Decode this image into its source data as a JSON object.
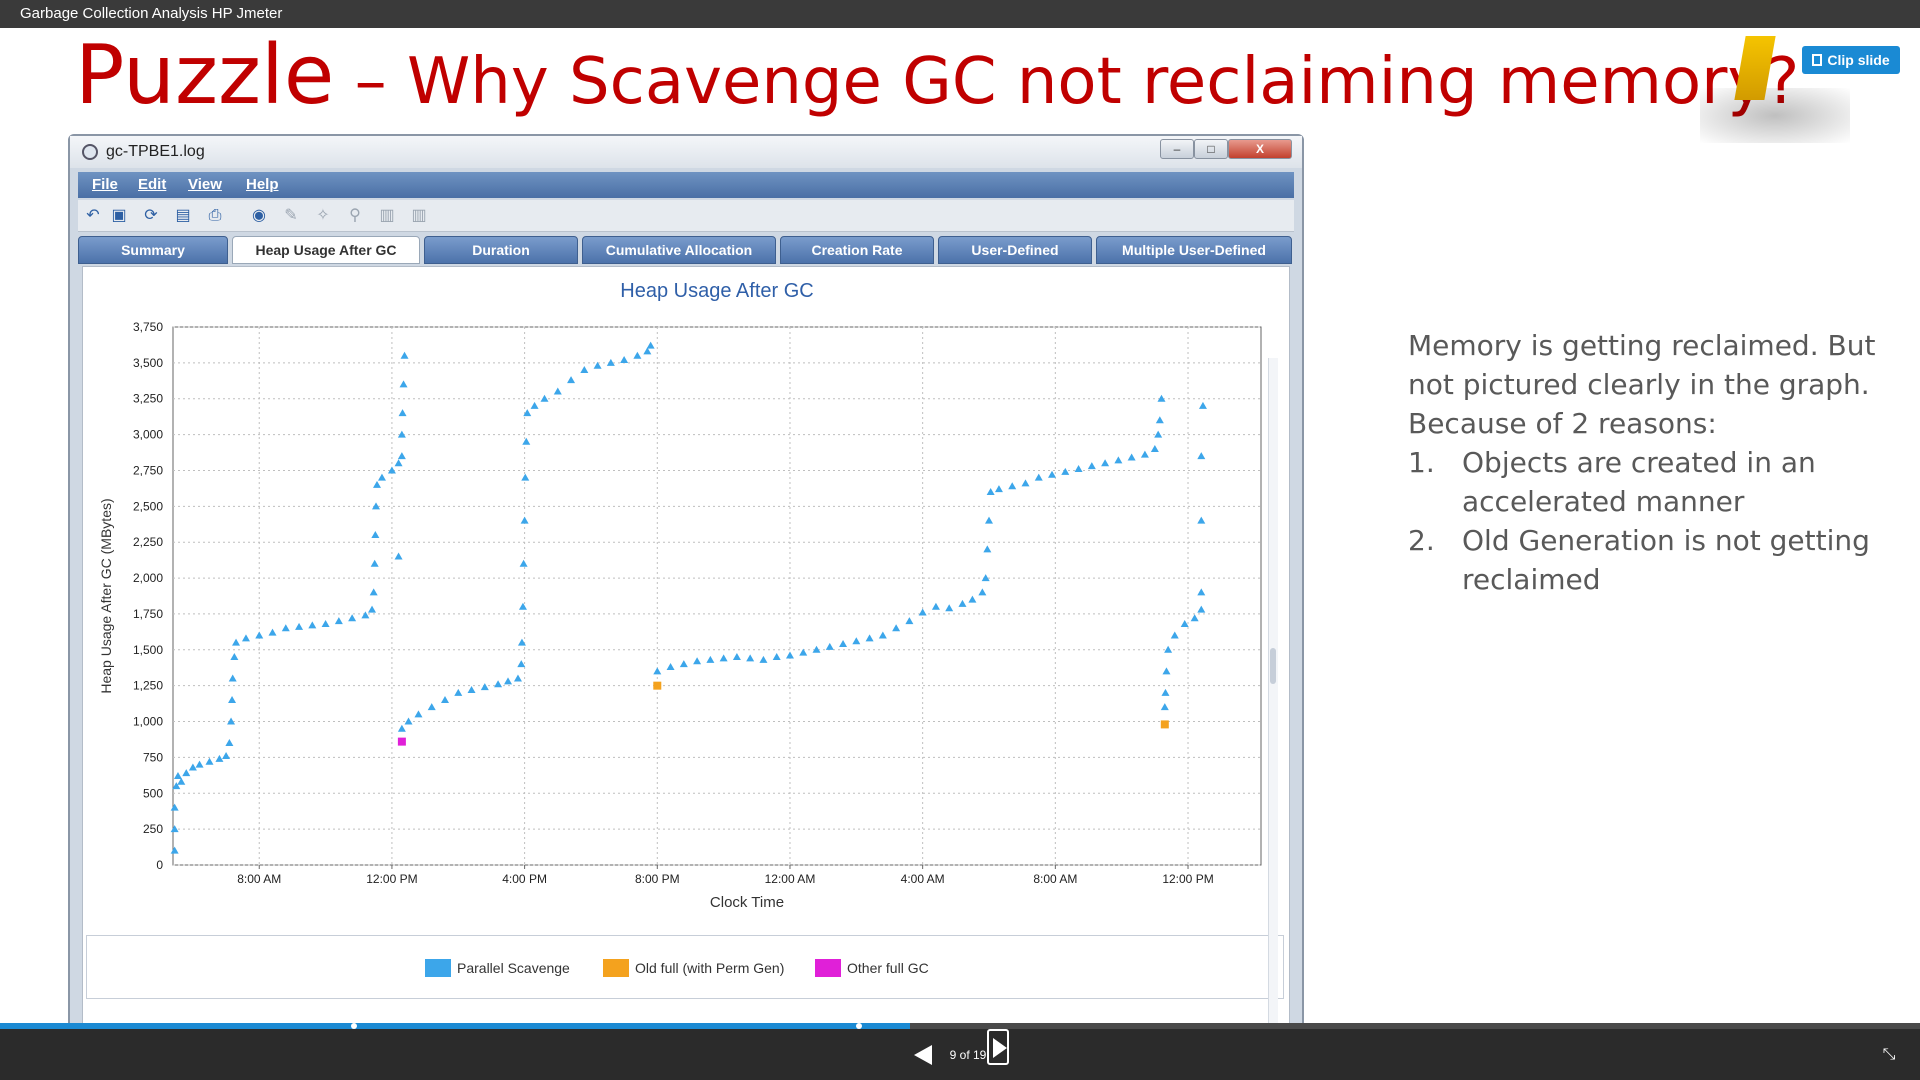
{
  "viewer": {
    "title": "Garbage Collection Analysis HP Jmeter",
    "clip_label": "Clip slide",
    "counter": "9 of 19",
    "progress_fraction": 0.474
  },
  "slide": {
    "title_main": "Puzzle",
    "title_rest": " – Why Scavenge GC not reclaiming memory?",
    "notes": {
      "intro": [
        "Memory is getting reclaimed. But",
        "not pictured clearly in the graph.",
        "Because of 2 reasons:"
      ],
      "items": [
        {
          "num": "1.",
          "lines": [
            "Objects are created in an",
            "accelerated manner"
          ]
        },
        {
          "num": "2.",
          "lines": [
            "Old Generation is not getting",
            "reclaimed"
          ]
        }
      ]
    }
  },
  "window": {
    "title": "gc-TPBE1.log",
    "close_glyph": "X",
    "menu": [
      "File",
      "Edit",
      "View",
      "Help"
    ],
    "toolbar_icons": [
      "undo-icon",
      "import-icon",
      "refresh-icon",
      "save-icon",
      "print-icon",
      "globe-icon",
      "wand-icon",
      "wand-sparkle-icon",
      "magnifier-icon",
      "bar-chart-icon",
      "bar-chart-2-icon"
    ],
    "tabs": [
      {
        "label": "Summary",
        "active": false
      },
      {
        "label": "Heap Usage After GC",
        "active": true
      },
      {
        "label": "Duration",
        "active": false
      },
      {
        "label": "Cumulative Allocation",
        "active": false
      },
      {
        "label": "Creation Rate",
        "active": false
      },
      {
        "label": "User-Defined",
        "active": false
      },
      {
        "label": "Multiple User-Defined",
        "active": false
      }
    ]
  },
  "chart_data": {
    "type": "scatter",
    "title": "Heap Usage After GC",
    "xlabel": "Clock Time",
    "ylabel": "Heap Usage After GC (MBytes)",
    "ylim": [
      0,
      3750
    ],
    "yticks": [
      0,
      250,
      500,
      750,
      1000,
      1250,
      1500,
      1750,
      2000,
      2250,
      2500,
      2750,
      3000,
      3250,
      3500,
      3750
    ],
    "ytick_labels": [
      "0",
      "250",
      "500",
      "750",
      "1,000",
      "1,250",
      "1,500",
      "1,750",
      "2,000",
      "2,250",
      "2,500",
      "2,750",
      "3,000",
      "3,250",
      "3,500",
      "3,750"
    ],
    "xlim_hours": [
      5.4,
      38.2
    ],
    "xticks_hours": [
      8,
      12,
      16,
      20,
      24,
      28,
      32,
      36
    ],
    "xtick_labels": [
      "8:00 AM",
      "12:00 PM",
      "4:00 PM",
      "8:00 PM",
      "12:00 AM",
      "4:00 AM",
      "8:00 AM",
      "12:00 PM"
    ],
    "grid": true,
    "legend": "bottom",
    "series": [
      {
        "name": "Parallel Scavenge",
        "color": "#3ca6ea",
        "marker": "triangle",
        "points": [
          [
            5.45,
            100
          ],
          [
            5.45,
            250
          ],
          [
            5.45,
            400
          ],
          [
            5.5,
            550
          ],
          [
            5.55,
            620
          ],
          [
            5.65,
            580
          ],
          [
            5.8,
            640
          ],
          [
            6.0,
            680
          ],
          [
            6.2,
            700
          ],
          [
            6.5,
            720
          ],
          [
            6.8,
            740
          ],
          [
            7.0,
            760
          ],
          [
            7.1,
            850
          ],
          [
            7.15,
            1000
          ],
          [
            7.18,
            1150
          ],
          [
            7.2,
            1300
          ],
          [
            7.25,
            1450
          ],
          [
            7.3,
            1550
          ],
          [
            7.6,
            1580
          ],
          [
            8.0,
            1600
          ],
          [
            8.4,
            1620
          ],
          [
            8.8,
            1650
          ],
          [
            9.2,
            1660
          ],
          [
            9.6,
            1670
          ],
          [
            10.0,
            1680
          ],
          [
            10.4,
            1700
          ],
          [
            10.8,
            1720
          ],
          [
            11.2,
            1740
          ],
          [
            11.4,
            1780
          ],
          [
            11.45,
            1900
          ],
          [
            11.48,
            2100
          ],
          [
            11.5,
            2300
          ],
          [
            11.52,
            2500
          ],
          [
            11.55,
            2650
          ],
          [
            11.7,
            2700
          ],
          [
            12.0,
            2750
          ],
          [
            12.2,
            2800
          ],
          [
            12.3,
            2850
          ],
          [
            12.2,
            2150
          ],
          [
            12.3,
            3000
          ],
          [
            12.32,
            3150
          ],
          [
            12.35,
            3350
          ],
          [
            12.38,
            3550
          ],
          [
            12.3,
            950
          ],
          [
            12.5,
            1000
          ],
          [
            12.8,
            1050
          ],
          [
            13.2,
            1100
          ],
          [
            13.6,
            1150
          ],
          [
            14.0,
            1200
          ],
          [
            14.4,
            1220
          ],
          [
            14.8,
            1240
          ],
          [
            15.2,
            1260
          ],
          [
            15.5,
            1280
          ],
          [
            15.8,
            1300
          ],
          [
            15.9,
            1400
          ],
          [
            15.92,
            1550
          ],
          [
            15.95,
            1800
          ],
          [
            15.97,
            2100
          ],
          [
            16.0,
            2400
          ],
          [
            16.02,
            2700
          ],
          [
            16.05,
            2950
          ],
          [
            16.08,
            3150
          ],
          [
            16.3,
            3200
          ],
          [
            16.6,
            3250
          ],
          [
            17.0,
            3300
          ],
          [
            17.4,
            3380
          ],
          [
            17.8,
            3450
          ],
          [
            18.2,
            3480
          ],
          [
            18.6,
            3500
          ],
          [
            19.0,
            3520
          ],
          [
            19.4,
            3550
          ],
          [
            19.7,
            3580
          ],
          [
            19.8,
            3620
          ],
          [
            20.0,
            1350
          ],
          [
            20.4,
            1380
          ],
          [
            20.8,
            1400
          ],
          [
            21.2,
            1420
          ],
          [
            21.6,
            1430
          ],
          [
            22.0,
            1440
          ],
          [
            22.4,
            1450
          ],
          [
            22.8,
            1440
          ],
          [
            23.2,
            1430
          ],
          [
            23.6,
            1450
          ],
          [
            24.0,
            1460
          ],
          [
            24.4,
            1480
          ],
          [
            24.8,
            1500
          ],
          [
            25.2,
            1520
          ],
          [
            25.6,
            1540
          ],
          [
            26.0,
            1560
          ],
          [
            26.4,
            1580
          ],
          [
            26.8,
            1600
          ],
          [
            27.2,
            1650
          ],
          [
            27.6,
            1700
          ],
          [
            28.0,
            1760
          ],
          [
            28.4,
            1800
          ],
          [
            28.8,
            1790
          ],
          [
            29.2,
            1820
          ],
          [
            29.5,
            1850
          ],
          [
            29.8,
            1900
          ],
          [
            29.9,
            2000
          ],
          [
            29.95,
            2200
          ],
          [
            30.0,
            2400
          ],
          [
            30.05,
            2600
          ],
          [
            30.3,
            2620
          ],
          [
            30.7,
            2640
          ],
          [
            31.1,
            2660
          ],
          [
            31.5,
            2700
          ],
          [
            31.9,
            2720
          ],
          [
            32.3,
            2740
          ],
          [
            32.7,
            2760
          ],
          [
            33.1,
            2780
          ],
          [
            33.5,
            2800
          ],
          [
            33.9,
            2820
          ],
          [
            34.3,
            2840
          ],
          [
            34.7,
            2860
          ],
          [
            35.0,
            2900
          ],
          [
            35.1,
            3000
          ],
          [
            35.15,
            3100
          ],
          [
            35.2,
            3250
          ],
          [
            35.3,
            1100
          ],
          [
            35.32,
            1200
          ],
          [
            35.35,
            1350
          ],
          [
            35.4,
            1500
          ],
          [
            35.6,
            1600
          ],
          [
            35.9,
            1680
          ],
          [
            36.2,
            1720
          ],
          [
            36.4,
            1780
          ],
          [
            36.4,
            1900
          ],
          [
            36.4,
            2400
          ],
          [
            36.4,
            2850
          ],
          [
            36.45,
            3200
          ]
        ]
      },
      {
        "name": "Old full (with Perm Gen)",
        "color": "#f4a21e",
        "marker": "square",
        "points": [
          [
            20.0,
            1250
          ],
          [
            35.3,
            980
          ]
        ]
      },
      {
        "name": "Other full GC",
        "color": "#e020d8",
        "marker": "square",
        "points": [
          [
            12.3,
            860
          ]
        ]
      }
    ]
  }
}
